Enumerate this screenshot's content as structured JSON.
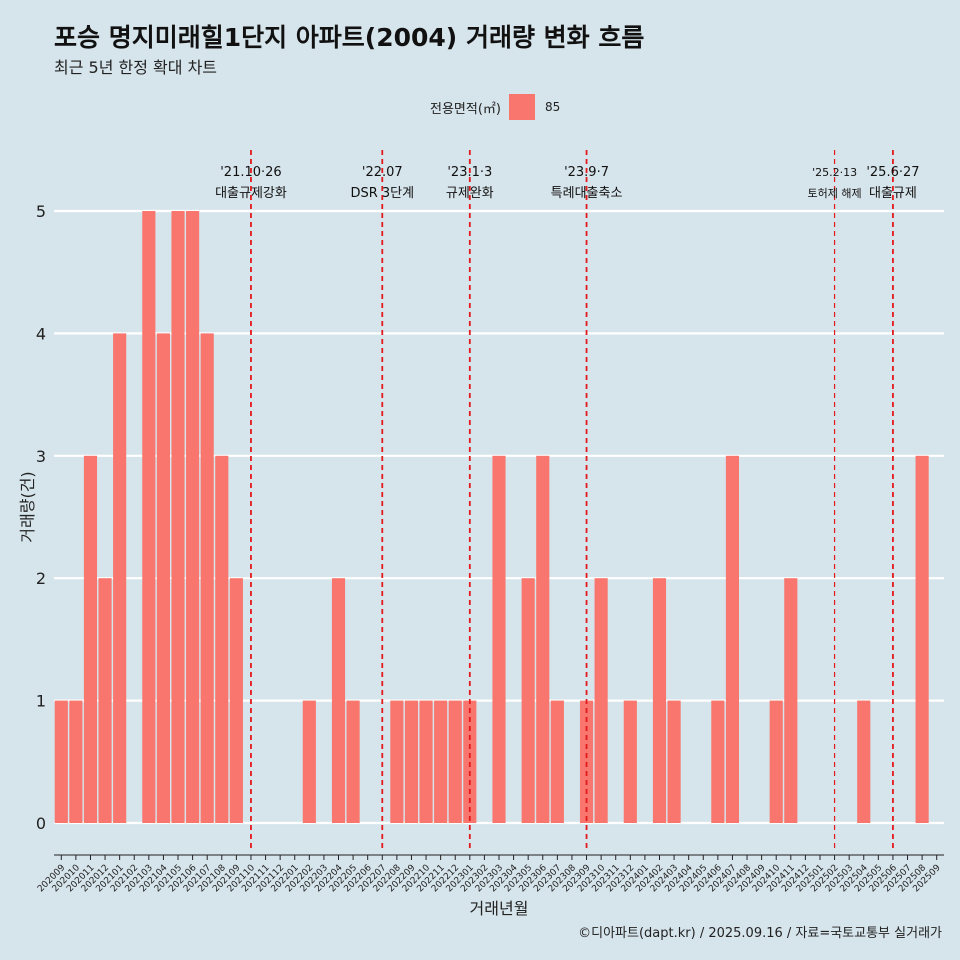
{
  "header": {
    "title": "포승 명지미래힐1단지 아파트(2004) 거래량 변화 흐름",
    "subtitle": "최근 5년 한정 확대 차트"
  },
  "legend": {
    "title": "전용면적(㎡)",
    "label": "85"
  },
  "caption": "©디아파트(dapt.kr) / 2025.09.16 / 자료=국토교통부 실거래가",
  "colors": {
    "background": "#d6e4eb",
    "bar": "#f8766d",
    "event_line": "#e31a1c",
    "grid": "#ffffff"
  },
  "chart_data": {
    "type": "bar",
    "xlabel": "거래년월",
    "ylabel": "거래량(건)",
    "ylim": [
      0,
      5
    ],
    "yticks": [
      0,
      1,
      2,
      3,
      4,
      5
    ],
    "grid": true,
    "legend_position": "top",
    "categories": [
      "202009",
      "202010",
      "202011",
      "202012",
      "202101",
      "202102",
      "202103",
      "202104",
      "202105",
      "202106",
      "202107",
      "202108",
      "202109",
      "202110",
      "202111",
      "202112",
      "202201",
      "202202",
      "202203",
      "202204",
      "202205",
      "202206",
      "202207",
      "202208",
      "202209",
      "202210",
      "202211",
      "202212",
      "202301",
      "202302",
      "202303",
      "202304",
      "202305",
      "202306",
      "202307",
      "202308",
      "202309",
      "202310",
      "202311",
      "202312",
      "202401",
      "202402",
      "202403",
      "202404",
      "202405",
      "202406",
      "202407",
      "202408",
      "202409",
      "202410",
      "202411",
      "202412",
      "202501",
      "202502",
      "202503",
      "202504",
      "202505",
      "202506",
      "202507",
      "202508",
      "202509"
    ],
    "series": [
      {
        "name": "85",
        "values": [
          1,
          1,
          3,
          2,
          4,
          0,
          5,
          4,
          5,
          5,
          4,
          3,
          2,
          0,
          0,
          0,
          0,
          1,
          0,
          2,
          1,
          0,
          0,
          1,
          1,
          1,
          1,
          1,
          1,
          0,
          3,
          0,
          2,
          3,
          1,
          0,
          1,
          2,
          0,
          1,
          0,
          2,
          1,
          0,
          0,
          1,
          3,
          0,
          0,
          1,
          2,
          0,
          0,
          0,
          0,
          1,
          0,
          0,
          0,
          3,
          0
        ]
      }
    ],
    "events": [
      {
        "date": "202110",
        "line1": "'21.10·26",
        "line2": "대출규제강화",
        "small": false
      },
      {
        "date": "202207",
        "line1": "'22.07",
        "line2": "DSR 3단계",
        "small": false
      },
      {
        "date": "202301",
        "line1": "'23.1·3",
        "line2": "규제완화",
        "small": false
      },
      {
        "date": "202309",
        "line1": "'23.9·7",
        "line2": "특례대출축소",
        "small": false
      },
      {
        "date": "202502",
        "line1": "'25.2·13",
        "line2": "토허제 해제",
        "small": true
      },
      {
        "date": "202506",
        "line1": "'25.6·27",
        "line2": "대출규제",
        "small": false
      }
    ]
  }
}
